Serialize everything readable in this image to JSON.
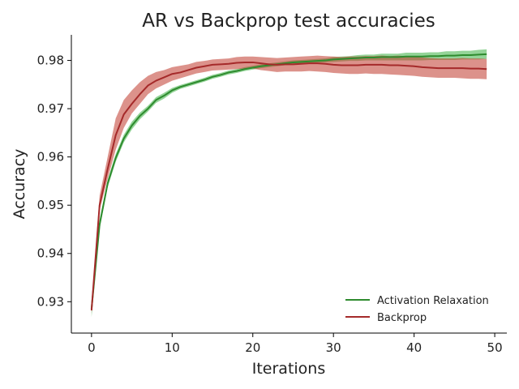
{
  "chart_data": {
    "type": "line",
    "title": "AR vs Backprop test accuracies",
    "xlabel": "Iterations",
    "ylabel": "Accuracy",
    "xlim": [
      -2.5,
      51.5
    ],
    "ylim": [
      0.9235,
      0.9853
    ],
    "xticks": [
      0,
      10,
      20,
      30,
      40,
      50
    ],
    "yticks": [
      0.93,
      0.94,
      0.95,
      0.96,
      0.97,
      0.98
    ],
    "ytick_labels": [
      "0.93",
      "0.94",
      "0.95",
      "0.96",
      "0.97",
      "0.98"
    ],
    "grid": false,
    "legend_position": "lower-right",
    "x": [
      0,
      1,
      2,
      3,
      4,
      5,
      6,
      7,
      8,
      9,
      10,
      11,
      12,
      13,
      14,
      15,
      16,
      17,
      18,
      19,
      20,
      21,
      22,
      23,
      24,
      25,
      26,
      27,
      28,
      29,
      30,
      31,
      32,
      33,
      34,
      35,
      36,
      37,
      38,
      39,
      40,
      41,
      42,
      43,
      44,
      45,
      46,
      47,
      48,
      49
    ],
    "series": [
      {
        "name": "Activation Relaxation",
        "color": "#2e8b2e",
        "band_color": "#3cb043",
        "mean": [
          0.9285,
          0.946,
          0.9545,
          0.9598,
          0.9638,
          0.9665,
          0.9685,
          0.97,
          0.9718,
          0.9727,
          0.9738,
          0.9745,
          0.975,
          0.9755,
          0.976,
          0.9766,
          0.977,
          0.9775,
          0.9778,
          0.9782,
          0.9785,
          0.9788,
          0.979,
          0.9792,
          0.9794,
          0.9796,
          0.9797,
          0.9798,
          0.9799,
          0.98,
          0.9802,
          0.9803,
          0.9804,
          0.9805,
          0.9806,
          0.9806,
          0.9807,
          0.9807,
          0.9807,
          0.9808,
          0.9808,
          0.9808,
          0.9809,
          0.9809,
          0.981,
          0.981,
          0.9811,
          0.9811,
          0.9812,
          0.9813
        ],
        "lower": [
          0.9268,
          0.945,
          0.9537,
          0.959,
          0.963,
          0.9657,
          0.9678,
          0.9694,
          0.9712,
          0.9721,
          0.9733,
          0.9741,
          0.9746,
          0.9751,
          0.9756,
          0.9762,
          0.9766,
          0.9771,
          0.9774,
          0.9778,
          0.9781,
          0.9784,
          0.9786,
          0.9788,
          0.979,
          0.9792,
          0.9793,
          0.9794,
          0.9795,
          0.9796,
          0.9797,
          0.9798,
          0.9799,
          0.9799,
          0.98,
          0.98,
          0.98,
          0.98,
          0.98,
          0.98,
          0.98,
          0.98,
          0.9801,
          0.9801,
          0.9801,
          0.9801,
          0.9802,
          0.9802,
          0.9802,
          0.9803
        ],
        "upper": [
          0.9302,
          0.947,
          0.9553,
          0.9606,
          0.9646,
          0.9673,
          0.9692,
          0.9706,
          0.9724,
          0.9733,
          0.9743,
          0.9749,
          0.9754,
          0.9759,
          0.9764,
          0.977,
          0.9774,
          0.9779,
          0.9782,
          0.9786,
          0.9789,
          0.9792,
          0.9794,
          0.9796,
          0.9798,
          0.98,
          0.9801,
          0.9802,
          0.9803,
          0.9804,
          0.9807,
          0.9808,
          0.9809,
          0.9811,
          0.9812,
          0.9812,
          0.9814,
          0.9814,
          0.9814,
          0.9816,
          0.9816,
          0.9816,
          0.9817,
          0.9817,
          0.9819,
          0.9819,
          0.982,
          0.982,
          0.9822,
          0.9823
        ]
      },
      {
        "name": "Backprop",
        "color": "#a52a2a",
        "band_color": "#c0392b",
        "mean": [
          0.9282,
          0.95,
          0.9575,
          0.9645,
          0.9688,
          0.971,
          0.973,
          0.9748,
          0.9758,
          0.9765,
          0.9772,
          0.9775,
          0.978,
          0.9785,
          0.9788,
          0.9791,
          0.9792,
          0.9793,
          0.9795,
          0.9796,
          0.9796,
          0.9794,
          0.9792,
          0.9791,
          0.9792,
          0.9792,
          0.9793,
          0.9794,
          0.9794,
          0.9793,
          0.9791,
          0.979,
          0.979,
          0.979,
          0.9791,
          0.9791,
          0.9791,
          0.979,
          0.979,
          0.9789,
          0.9788,
          0.9786,
          0.9785,
          0.9784,
          0.9784,
          0.9784,
          0.9784,
          0.9783,
          0.9783,
          0.9782
        ],
        "lower": [
          0.9275,
          0.949,
          0.9555,
          0.9615,
          0.966,
          0.969,
          0.971,
          0.973,
          0.9742,
          0.975,
          0.9758,
          0.9763,
          0.9768,
          0.9773,
          0.9776,
          0.9779,
          0.978,
          0.9781,
          0.9782,
          0.9783,
          0.9783,
          0.978,
          0.9778,
          0.9776,
          0.9777,
          0.9777,
          0.9777,
          0.9778,
          0.9777,
          0.9776,
          0.9774,
          0.9773,
          0.9772,
          0.9772,
          0.9773,
          0.9772,
          0.9772,
          0.9771,
          0.977,
          0.9769,
          0.9768,
          0.9766,
          0.9765,
          0.9764,
          0.9764,
          0.9764,
          0.9763,
          0.9762,
          0.9762,
          0.9761
        ],
        "upper": [
          0.9295,
          0.952,
          0.96,
          0.968,
          0.9718,
          0.9738,
          0.9755,
          0.9768,
          0.9776,
          0.978,
          0.9786,
          0.9789,
          0.9792,
          0.9797,
          0.9799,
          0.9802,
          0.9803,
          0.9804,
          0.9807,
          0.9808,
          0.9808,
          0.9807,
          0.9806,
          0.9805,
          0.9806,
          0.9807,
          0.9808,
          0.9809,
          0.981,
          0.9809,
          0.9808,
          0.9807,
          0.9808,
          0.9808,
          0.9809,
          0.9809,
          0.981,
          0.9809,
          0.981,
          0.9809,
          0.9808,
          0.9806,
          0.9805,
          0.9804,
          0.9804,
          0.9804,
          0.9805,
          0.9804,
          0.9804,
          0.9803
        ]
      }
    ]
  }
}
